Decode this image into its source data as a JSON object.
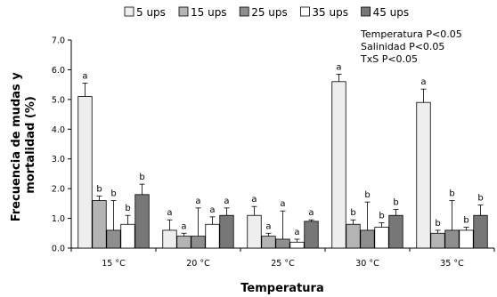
{
  "chart_data": {
    "type": "bar",
    "title": "",
    "xlabel": "Temperatura",
    "ylabel": "Frecuencia de mudas y mortalidad (%)",
    "ylabel_lines": [
      "Frecuencia de mudas y",
      "mortalidad (%)"
    ],
    "ylim": [
      0,
      7
    ],
    "yticks": [
      "0.0",
      "1.0",
      "2.0",
      "3.0",
      "4.0",
      "5.0",
      "6.0",
      "7.0"
    ],
    "categories": [
      "15 °C",
      "20 °C",
      "25 °C",
      "30 °C",
      "35 °C"
    ],
    "legend_position": "top",
    "grid": false,
    "series": [
      {
        "name": "5 ups",
        "color": "#eeeeee",
        "values": [
          5.1,
          0.6,
          1.1,
          5.6,
          4.9
        ],
        "errors": [
          0.45,
          0.35,
          0.3,
          0.25,
          0.45
        ],
        "labels": [
          "a",
          "a",
          "a",
          "a",
          "a"
        ]
      },
      {
        "name": "15 ups",
        "color": "#b4b4b4",
        "values": [
          1.6,
          0.4,
          0.4,
          0.8,
          0.5
        ],
        "errors": [
          0.15,
          0.1,
          0.1,
          0.15,
          0.1
        ],
        "labels": [
          "b",
          "a",
          "a",
          "b",
          "b"
        ]
      },
      {
        "name": "25 ups",
        "color": "#8e8e8e",
        "values": [
          0.6,
          0.4,
          0.3,
          0.6,
          0.6
        ],
        "errors": [
          1.0,
          0.95,
          0.95,
          0.95,
          1.0
        ],
        "labels": [
          "b",
          "a",
          "a",
          "b",
          "b"
        ]
      },
      {
        "name": "35 ups",
        "color": "#ffffff",
        "values": [
          0.8,
          0.8,
          0.2,
          0.7,
          0.6
        ],
        "errors": [
          0.3,
          0.25,
          0.1,
          0.15,
          0.1
        ],
        "labels": [
          "b",
          "a",
          "a",
          "b",
          "b"
        ]
      },
      {
        "name": "45 ups",
        "color": "#777777",
        "values": [
          1.8,
          1.1,
          0.9,
          1.1,
          1.1
        ],
        "errors": [
          0.35,
          0.25,
          0.05,
          0.2,
          0.35
        ],
        "labels": [
          "b",
          "a",
          "a",
          "b",
          "b"
        ]
      }
    ],
    "annotations": [
      "Temperatura P<0.05",
      "Salinidad P<0.05",
      "TxS P<0.05"
    ]
  }
}
